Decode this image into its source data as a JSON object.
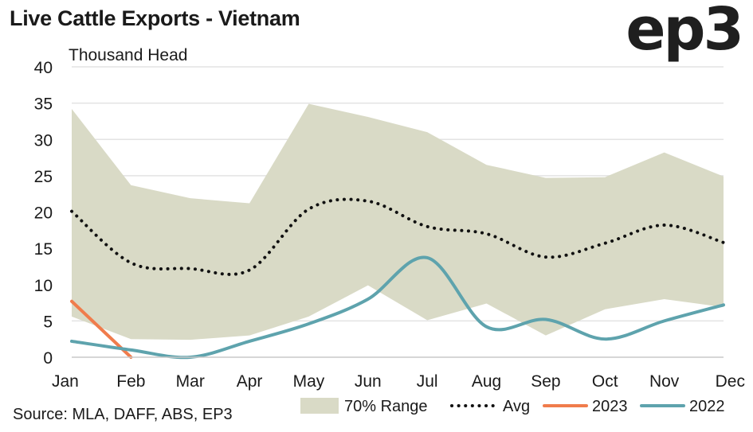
{
  "header": {
    "title": "Live Cattle Exports - Vietnam",
    "logo_text": "ep3"
  },
  "footer": {
    "source": "Source: MLA, DAFF, ABS, EP3"
  },
  "colors": {
    "range": "#d9dac6",
    "avg": "#111111",
    "s2023": "#f07c4c",
    "s2022": "#5ea3ad",
    "grid": "#e3e3e3"
  },
  "chart_data": {
    "type": "line",
    "ylabel": "Thousand Head",
    "ylim": [
      0,
      40
    ],
    "yticks": [
      0,
      5,
      10,
      15,
      20,
      25,
      30,
      35,
      40
    ],
    "categories": [
      "Jan",
      "Feb",
      "Mar",
      "Apr",
      "May",
      "Jun",
      "Jul",
      "Aug",
      "Sep",
      "Oct",
      "Nov",
      "Dec"
    ],
    "range": {
      "name": "70% Range",
      "upper": [
        34.2,
        23.7,
        21.9,
        21.2,
        34.9,
        33.1,
        31.0,
        26.5,
        24.7,
        24.8,
        28.2,
        24.9
      ],
      "lower": [
        5.6,
        2.5,
        2.4,
        3.0,
        5.6,
        9.9,
        5.1,
        7.4,
        3.0,
        6.6,
        8.0,
        6.9
      ]
    },
    "series": [
      {
        "name": "Avg",
        "style": "dotted",
        "values": [
          20.1,
          13.0,
          12.2,
          12.0,
          20.4,
          21.5,
          18.0,
          17.0,
          13.8,
          15.7,
          18.2,
          15.8
        ]
      },
      {
        "name": "2023",
        "style": "solid",
        "values": [
          7.7,
          0.0,
          null,
          null,
          null,
          null,
          null,
          null,
          null,
          null,
          null,
          null
        ]
      },
      {
        "name": "2022",
        "style": "solid",
        "values": [
          2.2,
          1.0,
          0.0,
          2.2,
          4.6,
          8.0,
          13.7,
          4.2,
          5.2,
          2.5,
          5.0,
          7.2
        ]
      }
    ],
    "legend": [
      "70% Range",
      "Avg",
      "2023",
      "2022"
    ],
    "legend_position": "bottom-right",
    "grid": true
  }
}
